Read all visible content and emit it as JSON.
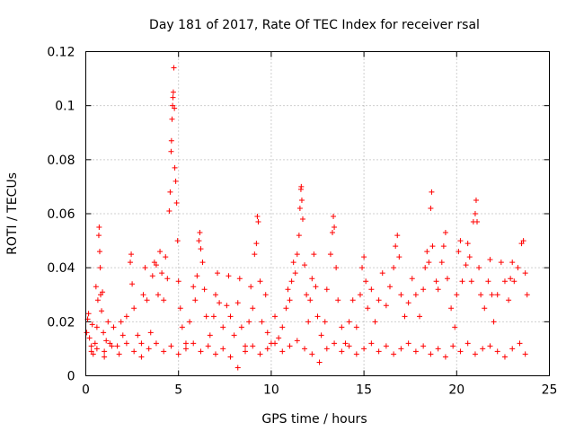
{
  "chart_data": {
    "type": "scatter",
    "title": "Day 181 of 2017, Rate Of TEC Index for receiver rsal",
    "xlabel": "GPS time / hours",
    "ylabel": "ROTI / TECUs",
    "xlim": [
      0,
      25
    ],
    "ylim": [
      0,
      0.12
    ],
    "grid": true,
    "marker": "+",
    "color": "#ff0000",
    "x_ticks": [
      "0",
      "5",
      "10",
      "15",
      "20",
      "25"
    ],
    "y_ticks": [
      "0",
      "0.02",
      "0.04",
      "0.06",
      "0.08",
      "0.1",
      "0.12"
    ],
    "series": [
      {
        "name": "ROTI",
        "points": [
          [
            0.05,
            0.016
          ],
          [
            0.1,
            0.021
          ],
          [
            0.15,
            0.023
          ],
          [
            0.2,
            0.014
          ],
          [
            0.3,
            0.011
          ],
          [
            0.35,
            0.019
          ],
          [
            0.4,
            0.008
          ],
          [
            0.5,
            0.012
          ],
          [
            0.55,
            0.033
          ],
          [
            0.6,
            0.018
          ],
          [
            0.65,
            0.028
          ],
          [
            0.7,
            0.052
          ],
          [
            0.72,
            0.055
          ],
          [
            0.75,
            0.046
          ],
          [
            0.78,
            0.04
          ],
          [
            0.8,
            0.03
          ],
          [
            0.85,
            0.024
          ],
          [
            0.9,
            0.031
          ],
          [
            0.95,
            0.016
          ],
          [
            1.0,
            0.009
          ],
          [
            1.1,
            0.013
          ],
          [
            1.2,
            0.02
          ],
          [
            1.3,
            0.012
          ],
          [
            1.5,
            0.018
          ],
          [
            1.7,
            0.011
          ],
          [
            1.9,
            0.02
          ],
          [
            2.0,
            0.015
          ],
          [
            2.2,
            0.022
          ],
          [
            2.4,
            0.042
          ],
          [
            2.45,
            0.045
          ],
          [
            2.5,
            0.034
          ],
          [
            2.6,
            0.025
          ],
          [
            2.8,
            0.015
          ],
          [
            3.0,
            0.012
          ],
          [
            3.1,
            0.03
          ],
          [
            3.2,
            0.04
          ],
          [
            3.3,
            0.028
          ],
          [
            3.5,
            0.016
          ],
          [
            3.6,
            0.037
          ],
          [
            3.7,
            0.042
          ],
          [
            3.8,
            0.041
          ],
          [
            3.9,
            0.03
          ],
          [
            4.0,
            0.046
          ],
          [
            4.1,
            0.038
          ],
          [
            4.2,
            0.028
          ],
          [
            4.3,
            0.044
          ],
          [
            4.4,
            0.036
          ],
          [
            4.5,
            0.061
          ],
          [
            4.55,
            0.068
          ],
          [
            4.6,
            0.083
          ],
          [
            4.62,
            0.087
          ],
          [
            4.65,
            0.095
          ],
          [
            4.68,
            0.1
          ],
          [
            4.7,
            0.103
          ],
          [
            4.72,
            0.105
          ],
          [
            4.75,
            0.114
          ],
          [
            4.78,
            0.099
          ],
          [
            4.8,
            0.077
          ],
          [
            4.85,
            0.072
          ],
          [
            4.9,
            0.064
          ],
          [
            4.95,
            0.05
          ],
          [
            5.0,
            0.035
          ],
          [
            5.1,
            0.025
          ],
          [
            5.2,
            0.018
          ],
          [
            5.4,
            0.012
          ],
          [
            5.6,
            0.02
          ],
          [
            5.8,
            0.033
          ],
          [
            5.9,
            0.028
          ],
          [
            6.0,
            0.037
          ],
          [
            6.1,
            0.05
          ],
          [
            6.15,
            0.053
          ],
          [
            6.2,
            0.047
          ],
          [
            6.3,
            0.042
          ],
          [
            6.4,
            0.032
          ],
          [
            6.5,
            0.022
          ],
          [
            6.7,
            0.015
          ],
          [
            6.9,
            0.022
          ],
          [
            7.0,
            0.03
          ],
          [
            7.1,
            0.038
          ],
          [
            7.2,
            0.027
          ],
          [
            7.4,
            0.018
          ],
          [
            7.6,
            0.026
          ],
          [
            7.7,
            0.037
          ],
          [
            7.8,
            0.022
          ],
          [
            8.0,
            0.015
          ],
          [
            8.2,
            0.027
          ],
          [
            8.3,
            0.036
          ],
          [
            8.4,
            0.018
          ],
          [
            8.6,
            0.011
          ],
          [
            8.8,
            0.02
          ],
          [
            8.9,
            0.033
          ],
          [
            9.0,
            0.025
          ],
          [
            9.1,
            0.045
          ],
          [
            9.2,
            0.049
          ],
          [
            9.25,
            0.059
          ],
          [
            9.3,
            0.057
          ],
          [
            9.4,
            0.035
          ],
          [
            9.5,
            0.02
          ],
          [
            9.7,
            0.03
          ],
          [
            9.8,
            0.016
          ],
          [
            10.0,
            0.012
          ],
          [
            10.2,
            0.022
          ],
          [
            10.4,
            0.014
          ],
          [
            10.6,
            0.018
          ],
          [
            10.8,
            0.025
          ],
          [
            10.9,
            0.032
          ],
          [
            11.0,
            0.028
          ],
          [
            11.1,
            0.035
          ],
          [
            11.2,
            0.042
          ],
          [
            11.3,
            0.038
          ],
          [
            11.4,
            0.045
          ],
          [
            11.5,
            0.052
          ],
          [
            11.55,
            0.062
          ],
          [
            11.6,
            0.069
          ],
          [
            11.62,
            0.07
          ],
          [
            11.65,
            0.065
          ],
          [
            11.7,
            0.058
          ],
          [
            11.8,
            0.041
          ],
          [
            11.9,
            0.03
          ],
          [
            12.0,
            0.02
          ],
          [
            12.1,
            0.028
          ],
          [
            12.2,
            0.036
          ],
          [
            12.3,
            0.045
          ],
          [
            12.4,
            0.033
          ],
          [
            12.5,
            0.022
          ],
          [
            12.7,
            0.015
          ],
          [
            12.9,
            0.02
          ],
          [
            13.0,
            0.032
          ],
          [
            13.2,
            0.045
          ],
          [
            13.3,
            0.053
          ],
          [
            13.35,
            0.059
          ],
          [
            13.4,
            0.055
          ],
          [
            13.5,
            0.04
          ],
          [
            13.6,
            0.028
          ],
          [
            13.8,
            0.018
          ],
          [
            14.0,
            0.012
          ],
          [
            14.2,
            0.02
          ],
          [
            14.4,
            0.028
          ],
          [
            14.6,
            0.018
          ],
          [
            14.8,
            0.03
          ],
          [
            14.9,
            0.04
          ],
          [
            15.0,
            0.044
          ],
          [
            15.1,
            0.035
          ],
          [
            15.2,
            0.025
          ],
          [
            15.4,
            0.032
          ],
          [
            15.6,
            0.02
          ],
          [
            15.8,
            0.028
          ],
          [
            16.0,
            0.038
          ],
          [
            16.2,
            0.026
          ],
          [
            16.4,
            0.033
          ],
          [
            16.6,
            0.04
          ],
          [
            16.7,
            0.048
          ],
          [
            16.8,
            0.052
          ],
          [
            16.9,
            0.044
          ],
          [
            17.0,
            0.03
          ],
          [
            17.2,
            0.022
          ],
          [
            17.4,
            0.027
          ],
          [
            17.6,
            0.036
          ],
          [
            17.8,
            0.03
          ],
          [
            18.0,
            0.022
          ],
          [
            18.2,
            0.032
          ],
          [
            18.3,
            0.04
          ],
          [
            18.4,
            0.046
          ],
          [
            18.5,
            0.042
          ],
          [
            18.6,
            0.062
          ],
          [
            18.65,
            0.068
          ],
          [
            18.7,
            0.048
          ],
          [
            18.9,
            0.035
          ],
          [
            19.0,
            0.032
          ],
          [
            19.2,
            0.042
          ],
          [
            19.3,
            0.048
          ],
          [
            19.4,
            0.053
          ],
          [
            19.5,
            0.036
          ],
          [
            19.7,
            0.025
          ],
          [
            19.9,
            0.018
          ],
          [
            20.0,
            0.03
          ],
          [
            20.1,
            0.046
          ],
          [
            20.2,
            0.05
          ],
          [
            20.3,
            0.035
          ],
          [
            20.5,
            0.041
          ],
          [
            20.6,
            0.049
          ],
          [
            20.7,
            0.044
          ],
          [
            20.8,
            0.035
          ],
          [
            20.9,
            0.057
          ],
          [
            21.0,
            0.06
          ],
          [
            21.05,
            0.065
          ],
          [
            21.1,
            0.057
          ],
          [
            21.2,
            0.04
          ],
          [
            21.3,
            0.03
          ],
          [
            21.5,
            0.025
          ],
          [
            21.7,
            0.035
          ],
          [
            21.8,
            0.043
          ],
          [
            21.9,
            0.03
          ],
          [
            22.0,
            0.02
          ],
          [
            22.2,
            0.03
          ],
          [
            22.4,
            0.042
          ],
          [
            22.6,
            0.035
          ],
          [
            22.8,
            0.028
          ],
          [
            22.9,
            0.036
          ],
          [
            23.0,
            0.042
          ],
          [
            23.1,
            0.035
          ],
          [
            23.3,
            0.04
          ],
          [
            23.5,
            0.049
          ],
          [
            23.6,
            0.05
          ],
          [
            23.7,
            0.038
          ],
          [
            23.8,
            0.03
          ],
          [
            0.3,
            0.009
          ],
          [
            0.6,
            0.01
          ],
          [
            1.0,
            0.007
          ],
          [
            1.4,
            0.011
          ],
          [
            1.8,
            0.008
          ],
          [
            2.2,
            0.012
          ],
          [
            2.6,
            0.009
          ],
          [
            3.0,
            0.007
          ],
          [
            3.4,
            0.01
          ],
          [
            3.8,
            0.012
          ],
          [
            4.2,
            0.009
          ],
          [
            4.6,
            0.011
          ],
          [
            5.0,
            0.008
          ],
          [
            5.4,
            0.01
          ],
          [
            5.8,
            0.012
          ],
          [
            6.2,
            0.009
          ],
          [
            6.6,
            0.011
          ],
          [
            7.0,
            0.008
          ],
          [
            7.4,
            0.01
          ],
          [
            7.8,
            0.007
          ],
          [
            8.2,
            0.003
          ],
          [
            8.6,
            0.009
          ],
          [
            9.0,
            0.011
          ],
          [
            9.4,
            0.008
          ],
          [
            9.8,
            0.01
          ],
          [
            10.2,
            0.012
          ],
          [
            10.6,
            0.009
          ],
          [
            11.0,
            0.011
          ],
          [
            11.4,
            0.013
          ],
          [
            11.8,
            0.01
          ],
          [
            12.2,
            0.008
          ],
          [
            12.6,
            0.005
          ],
          [
            13.0,
            0.01
          ],
          [
            13.4,
            0.012
          ],
          [
            13.8,
            0.009
          ],
          [
            14.2,
            0.011
          ],
          [
            14.6,
            0.008
          ],
          [
            15.0,
            0.01
          ],
          [
            15.4,
            0.012
          ],
          [
            15.8,
            0.009
          ],
          [
            16.2,
            0.011
          ],
          [
            16.6,
            0.008
          ],
          [
            17.0,
            0.01
          ],
          [
            17.4,
            0.012
          ],
          [
            17.8,
            0.009
          ],
          [
            18.2,
            0.011
          ],
          [
            18.6,
            0.008
          ],
          [
            19.0,
            0.01
          ],
          [
            19.4,
            0.007
          ],
          [
            19.8,
            0.011
          ],
          [
            20.2,
            0.009
          ],
          [
            20.6,
            0.012
          ],
          [
            21.0,
            0.008
          ],
          [
            21.4,
            0.01
          ],
          [
            21.8,
            0.011
          ],
          [
            22.2,
            0.009
          ],
          [
            22.6,
            0.007
          ],
          [
            23.0,
            0.01
          ],
          [
            23.4,
            0.012
          ],
          [
            23.7,
            0.008
          ]
        ]
      }
    ]
  }
}
